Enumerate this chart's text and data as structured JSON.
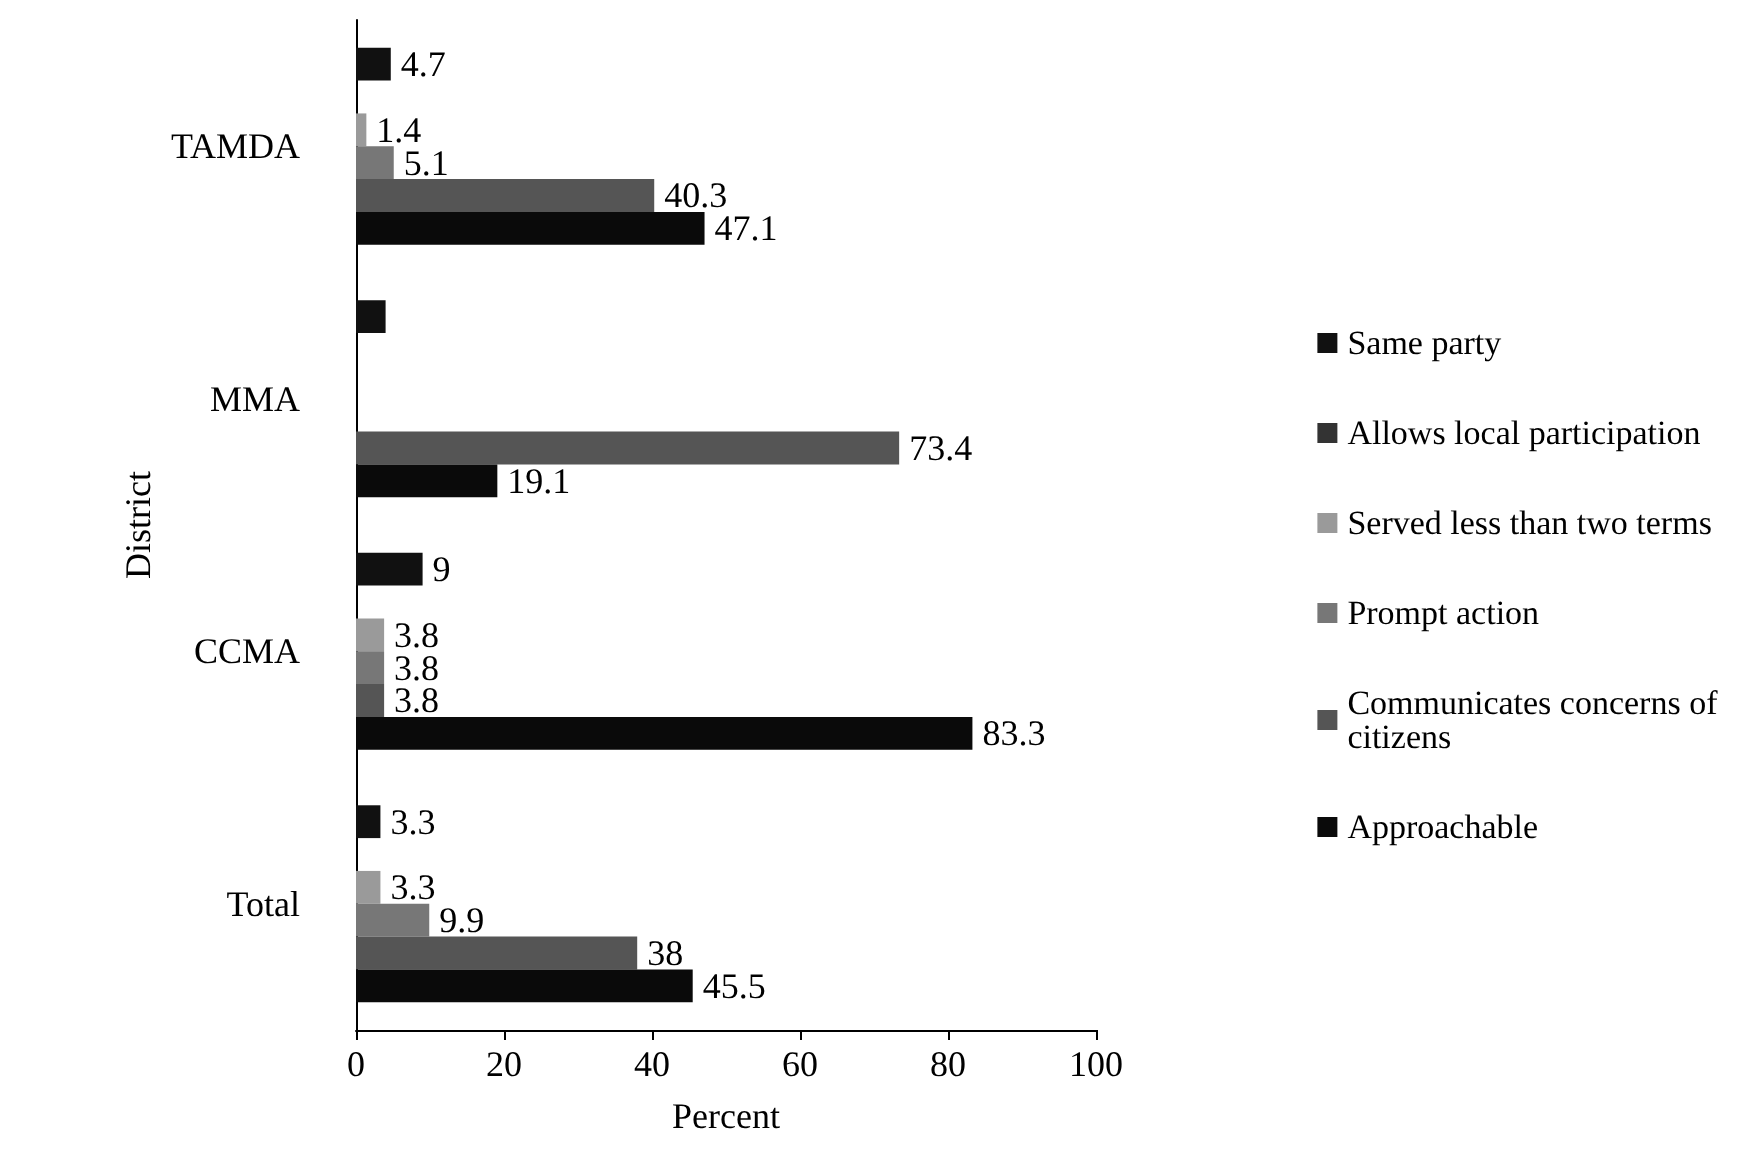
{
  "chart_data": {
    "type": "bar",
    "orientation": "horizontal",
    "xlabel": "Percent",
    "ylabel": "District",
    "categories": [
      "TAMDA",
      "MMA",
      "CCMA",
      "Total"
    ],
    "series": [
      {
        "name": "Same party",
        "color": "#111111",
        "values": [
          4.7,
          4,
          9,
          3.3
        ],
        "value_labels": [
          "4.7",
          null,
          "9",
          "3.3"
        ]
      },
      {
        "name": "Allows local participation",
        "color": "#333333",
        "values": [
          null,
          null,
          null,
          null
        ],
        "value_labels": [
          null,
          null,
          null,
          null
        ]
      },
      {
        "name": "Served less than two terms",
        "color": "#9a9a9a",
        "values": [
          1.4,
          null,
          3.8,
          3.3
        ],
        "value_labels": [
          "1.4",
          null,
          "3.8",
          "3.3"
        ]
      },
      {
        "name": "Prompt action",
        "color": "#777777",
        "values": [
          5.1,
          null,
          3.8,
          9.9
        ],
        "value_labels": [
          "5.1",
          null,
          "3.8",
          "9.9"
        ]
      },
      {
        "name": "Communicates concerns of citizens",
        "color": "#555555",
        "values": [
          40.3,
          73.4,
          3.8,
          38
        ],
        "value_labels": [
          "40.3",
          "73.4",
          "3.8",
          "38"
        ]
      },
      {
        "name": "Approachable",
        "color": "#0a0a0a",
        "values": [
          47.1,
          19.1,
          83.3,
          45.5
        ],
        "value_labels": [
          "47.1",
          "19.1",
          "83.3",
          "45.5"
        ]
      }
    ],
    "xlim": [
      0,
      100
    ],
    "xticks": [
      0,
      20,
      40,
      60,
      80,
      100
    ],
    "grid": false,
    "legend": "right"
  }
}
